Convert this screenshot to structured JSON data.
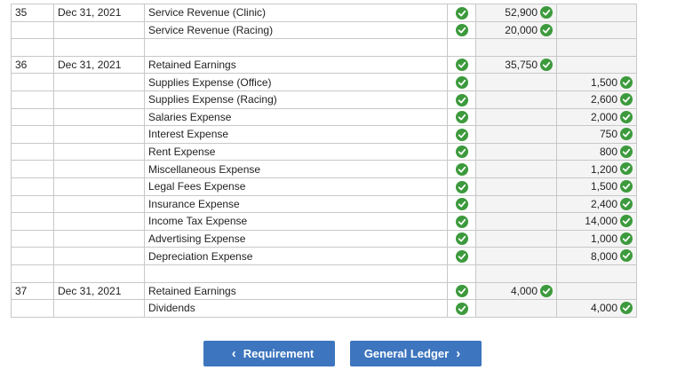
{
  "rows": [
    {
      "no": "35",
      "date": "Dec 31, 2021",
      "account": "Service Revenue (Clinic)",
      "indent": false,
      "debit": "52,900",
      "credit": "",
      "check": true
    },
    {
      "no": "",
      "date": "",
      "account": "Service Revenue (Racing)",
      "indent": false,
      "debit": "20,000",
      "credit": "",
      "check": true
    },
    {
      "no": "",
      "date": "",
      "account": "",
      "indent": false,
      "debit": "",
      "credit": "",
      "check": false
    },
    {
      "no": "36",
      "date": "Dec 31, 2021",
      "account": "Retained Earnings",
      "indent": false,
      "debit": "35,750",
      "credit": "",
      "check": true
    },
    {
      "no": "",
      "date": "",
      "account": "Supplies Expense (Office)",
      "indent": true,
      "debit": "",
      "credit": "1,500",
      "check": true
    },
    {
      "no": "",
      "date": "",
      "account": "Supplies Expense (Racing)",
      "indent": true,
      "debit": "",
      "credit": "2,600",
      "check": true
    },
    {
      "no": "",
      "date": "",
      "account": "Salaries Expense",
      "indent": true,
      "debit": "",
      "credit": "2,000",
      "check": true
    },
    {
      "no": "",
      "date": "",
      "account": "Interest Expense",
      "indent": true,
      "debit": "",
      "credit": "750",
      "check": true
    },
    {
      "no": "",
      "date": "",
      "account": "Rent Expense",
      "indent": true,
      "debit": "",
      "credit": "800",
      "check": true
    },
    {
      "no": "",
      "date": "",
      "account": "Miscellaneous Expense",
      "indent": true,
      "debit": "",
      "credit": "1,200",
      "check": true
    },
    {
      "no": "",
      "date": "",
      "account": "Legal Fees Expense",
      "indent": true,
      "debit": "",
      "credit": "1,500",
      "check": true
    },
    {
      "no": "",
      "date": "",
      "account": "Insurance Expense",
      "indent": true,
      "debit": "",
      "credit": "2,400",
      "check": true
    },
    {
      "no": "",
      "date": "",
      "account": "Income Tax Expense",
      "indent": true,
      "debit": "",
      "credit": "14,000",
      "check": true
    },
    {
      "no": "",
      "date": "",
      "account": "Advertising Expense",
      "indent": true,
      "debit": "",
      "credit": "1,000",
      "check": true
    },
    {
      "no": "",
      "date": "",
      "account": "Depreciation Expense",
      "indent": true,
      "debit": "",
      "credit": "8,000",
      "check": true
    },
    {
      "no": "",
      "date": "",
      "account": "",
      "indent": false,
      "debit": "",
      "credit": "",
      "check": false
    },
    {
      "no": "37",
      "date": "Dec 31, 2021",
      "account": "Retained Earnings",
      "indent": false,
      "debit": "4,000",
      "credit": "",
      "check": true
    },
    {
      "no": "",
      "date": "",
      "account": "Dividends",
      "indent": true,
      "debit": "",
      "credit": "4,000",
      "check": true
    }
  ],
  "buttons": {
    "requirement": "Requirement",
    "general_ledger": "General Ledger"
  },
  "icons": {
    "check": "check-circle-icon",
    "prev": "chevron-left-icon",
    "next": "chevron-right-icon"
  },
  "colors": {
    "check_green": "#3c9a3c",
    "button_blue": "#3d75be"
  }
}
